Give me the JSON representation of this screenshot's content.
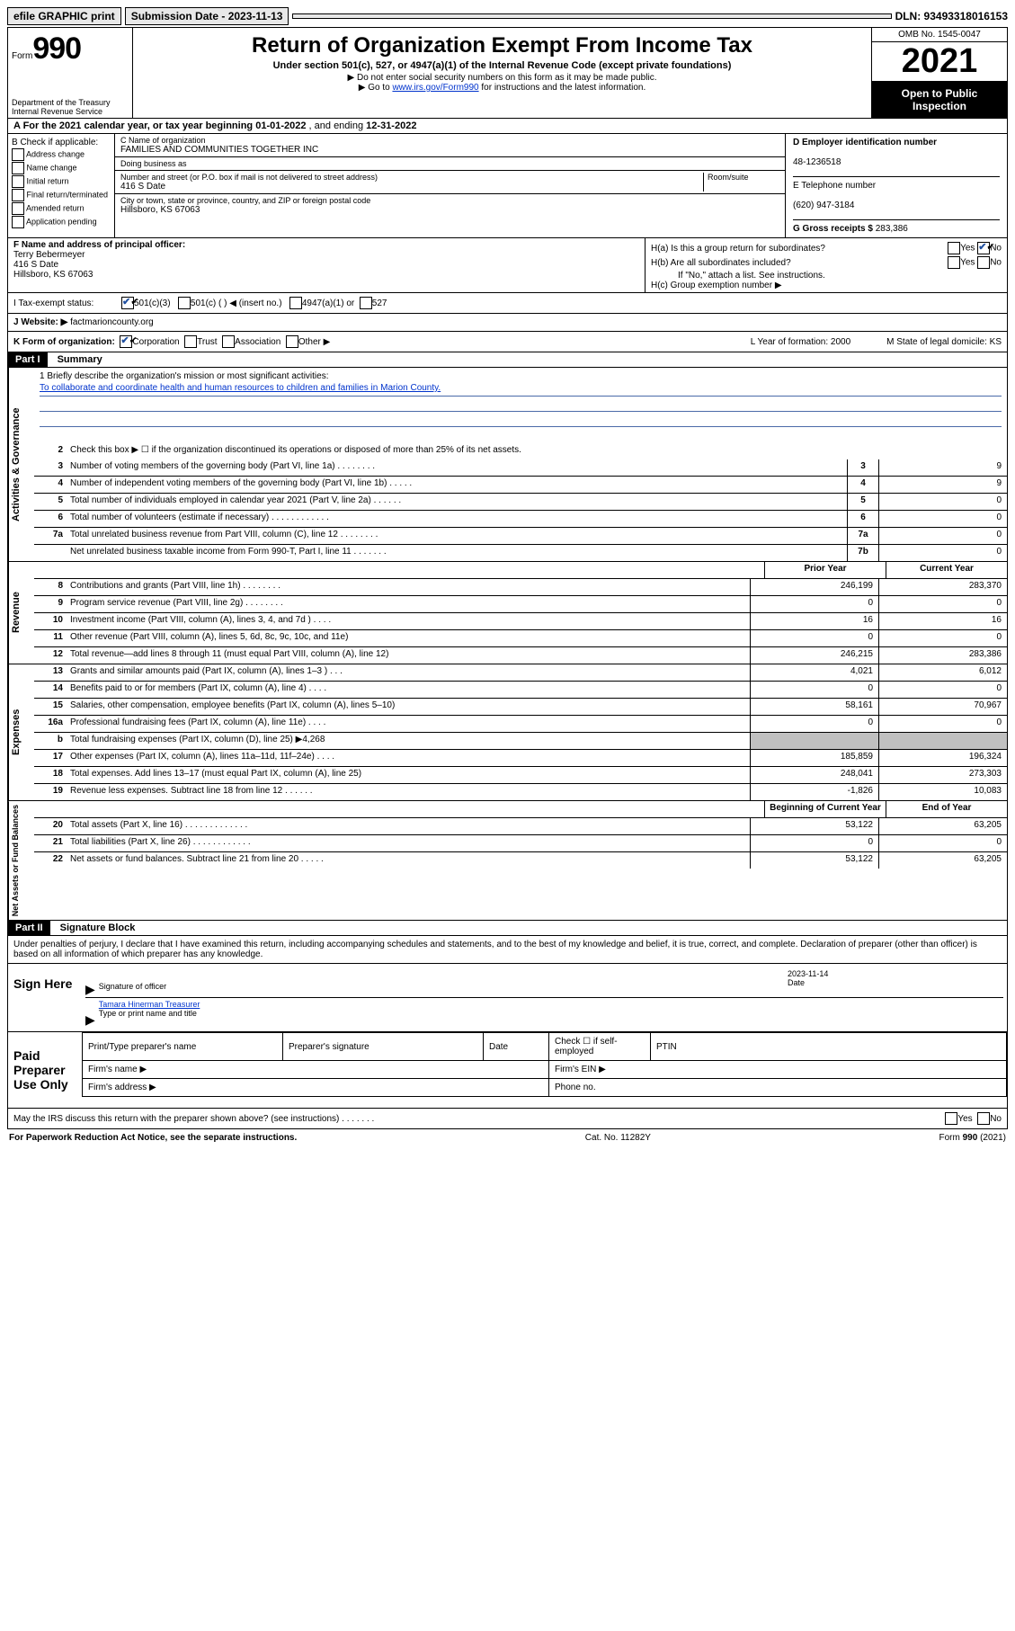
{
  "topbar": {
    "efile": "efile GRAPHIC print",
    "submission": "Submission Date - 2023-11-13",
    "dln": "DLN: 93493318016153"
  },
  "header": {
    "form_label": "Form",
    "form_number": "990",
    "title": "Return of Organization Exempt From Income Tax",
    "subtitle": "Under section 501(c), 527, or 4947(a)(1) of the Internal Revenue Code (except private foundations)",
    "note1": "▶ Do not enter social security numbers on this form as it may be made public.",
    "note2_pre": "▶ Go to ",
    "note2_link": "www.irs.gov/Form990",
    "note2_post": " for instructions and the latest information.",
    "dept": "Department of the Treasury\nInternal Revenue Service",
    "omb": "OMB No. 1545-0047",
    "year": "2021",
    "inspection": "Open to Public Inspection"
  },
  "lineA": {
    "text": "A For the 2021 calendar year, or tax year beginning ",
    "begin": "01-01-2022",
    "mid": " , and ending ",
    "end": "12-31-2022"
  },
  "sectionB": {
    "label": "B Check if applicable:",
    "opts": [
      "Address change",
      "Name change",
      "Initial return",
      "Final return/terminated",
      "Amended return",
      "Application pending"
    ]
  },
  "sectionC": {
    "name_label": "C Name of organization",
    "name": "FAMILIES AND COMMUNITIES TOGETHER INC",
    "dba_label": "Doing business as",
    "dba": "",
    "street_label": "Number and street (or P.O. box if mail is not delivered to street address)",
    "room_label": "Room/suite",
    "street": "416 S Date",
    "city_label": "City or town, state or province, country, and ZIP or foreign postal code",
    "city": "Hillsboro, KS  67063"
  },
  "sectionD": {
    "ein_label": "D Employer identification number",
    "ein": "48-1236518",
    "phone_label": "E Telephone number",
    "phone": "(620) 947-3184",
    "gross_label": "G Gross receipts $",
    "gross": "283,386"
  },
  "sectionF": {
    "label": "F Name and address of principal officer:",
    "name": "Terry Bebermeyer",
    "street": "416 S Date",
    "city": "Hillsboro, KS  67063"
  },
  "sectionH": {
    "ha": "H(a)  Is this a group return for subordinates?",
    "hb": "H(b)  Are all subordinates included?",
    "hb_note": "If \"No,\" attach a list. See instructions.",
    "hc": "H(c)  Group exemption number ▶",
    "yes": "Yes",
    "no": "No"
  },
  "sectionI": {
    "label": "I    Tax-exempt status:",
    "o1": "501(c)(3)",
    "o2": "501(c) (   ) ◀ (insert no.)",
    "o3": "4947(a)(1) or",
    "o4": "527"
  },
  "sectionJ": {
    "label": "J    Website: ▶",
    "value": "factmarioncounty.org"
  },
  "sectionK": {
    "label": "K Form of organization:",
    "o1": "Corporation",
    "o2": "Trust",
    "o3": "Association",
    "o4": "Other ▶",
    "L": "L Year of formation: 2000",
    "M": "M State of legal domicile: KS"
  },
  "partI": {
    "header": "Part I",
    "title": "Summary",
    "mission_label": "1   Briefly describe the organization's mission or most significant activities:",
    "mission": "To collaborate and coordinate health and human resources to children and families in Marion County.",
    "tabs": {
      "gov": "Activities & Governance",
      "rev": "Revenue",
      "exp": "Expenses",
      "net": "Net Assets or Fund Balances"
    },
    "line2": "Check this box ▶ ☐  if the organization discontinued its operations or disposed of more than 25% of its net assets.",
    "col_prior": "Prior Year",
    "col_current": "Current Year",
    "col_begin": "Beginning of Current Year",
    "col_end": "End of Year",
    "lines_gov": [
      {
        "n": "3",
        "d": "Number of voting members of the governing body (Part VI, line 1a)   .    .    .    .    .    .    .    .",
        "b": "3",
        "v": "9"
      },
      {
        "n": "4",
        "d": "Number of independent voting members of the governing body (Part VI, line 1b)   .    .    .    .    .",
        "b": "4",
        "v": "9"
      },
      {
        "n": "5",
        "d": "Total number of individuals employed in calendar year 2021 (Part V, line 2a)   .    .    .    .    .    .",
        "b": "5",
        "v": "0"
      },
      {
        "n": "6",
        "d": "Total number of volunteers (estimate if necessary)   .    .    .    .    .    .    .    .    .    .    .    .",
        "b": "6",
        "v": "0"
      },
      {
        "n": "7a",
        "d": "Total unrelated business revenue from Part VIII, column (C), line 12   .    .    .    .    .    .    .    .",
        "b": "7a",
        "v": "0"
      },
      {
        "n": " ",
        "d": "Net unrelated business taxable income from Form 990-T, Part I, line 11   .    .    .    .    .    .    .",
        "b": "7b",
        "v": "0"
      }
    ],
    "lines_rev": [
      {
        "n": "8",
        "d": "Contributions and grants (Part VIII, line 1h)   .    .    .    .    .    .    .    .",
        "p": "246,199",
        "c": "283,370"
      },
      {
        "n": "9",
        "d": "Program service revenue (Part VIII, line 2g)   .    .    .    .    .    .    .    .",
        "p": "0",
        "c": "0"
      },
      {
        "n": "10",
        "d": "Investment income (Part VIII, column (A), lines 3, 4, and 7d )   .    .    .    .",
        "p": "16",
        "c": "16"
      },
      {
        "n": "11",
        "d": "Other revenue (Part VIII, column (A), lines 5, 6d, 8c, 9c, 10c, and 11e)",
        "p": "0",
        "c": "0"
      },
      {
        "n": "12",
        "d": "Total revenue—add lines 8 through 11 (must equal Part VIII, column (A), line 12)",
        "p": "246,215",
        "c": "283,386"
      }
    ],
    "lines_exp": [
      {
        "n": "13",
        "d": "Grants and similar amounts paid (Part IX, column (A), lines 1–3 )   .    .    .",
        "p": "4,021",
        "c": "6,012"
      },
      {
        "n": "14",
        "d": "Benefits paid to or for members (Part IX, column (A), line 4)   .    .    .    .",
        "p": "0",
        "c": "0"
      },
      {
        "n": "15",
        "d": "Salaries, other compensation, employee benefits (Part IX, column (A), lines 5–10)",
        "p": "58,161",
        "c": "70,967"
      },
      {
        "n": "16a",
        "d": "Professional fundraising fees (Part IX, column (A), line 11e)   .    .    .    .",
        "p": "0",
        "c": "0"
      },
      {
        "n": "b",
        "d": "Total fundraising expenses (Part IX, column (D), line 25) ▶4,268",
        "p": "",
        "c": "",
        "shaded": true
      },
      {
        "n": "17",
        "d": "Other expenses (Part IX, column (A), lines 11a–11d, 11f–24e)   .    .    .    .",
        "p": "185,859",
        "c": "196,324"
      },
      {
        "n": "18",
        "d": "Total expenses. Add lines 13–17 (must equal Part IX, column (A), line 25)",
        "p": "248,041",
        "c": "273,303"
      },
      {
        "n": "19",
        "d": "Revenue less expenses. Subtract line 18 from line 12   .    .    .    .    .    .",
        "p": "-1,826",
        "c": "10,083"
      }
    ],
    "lines_net": [
      {
        "n": "20",
        "d": "Total assets (Part X, line 16)   .    .    .    .    .    .    .    .    .    .    .    .    .",
        "p": "53,122",
        "c": "63,205"
      },
      {
        "n": "21",
        "d": "Total liabilities (Part X, line 26)   .    .    .    .    .    .    .    .    .    .    .    .",
        "p": "0",
        "c": "0"
      },
      {
        "n": "22",
        "d": "Net assets or fund balances. Subtract line 21 from line 20   .    .    .    .    .",
        "p": "53,122",
        "c": "63,205"
      }
    ]
  },
  "partII": {
    "header": "Part II",
    "title": "Signature Block",
    "declaration": "Under penalties of perjury, I declare that I have examined this return, including accompanying schedules and statements, and to the best of my knowledge and belief, it is true, correct, and complete. Declaration of preparer (other than officer) is based on all information of which preparer has any knowledge.",
    "sign_here": "Sign Here",
    "sig_officer": "Signature of officer",
    "date_label": "Date",
    "date": "2023-11-14",
    "officer_name": "Tamara Hinerman  Treasurer",
    "type_name": "Type or print name and title",
    "paid": "Paid Preparer Use Only",
    "prep_name": "Print/Type preparer's name",
    "prep_sig": "Preparer's signature",
    "prep_date": "Date",
    "prep_check": "Check ☐ if self-employed",
    "ptin": "PTIN",
    "firm_name": "Firm's name    ▶",
    "firm_ein": "Firm's EIN ▶",
    "firm_addr": "Firm's address ▶",
    "phone": "Phone no.",
    "discuss": "May the IRS discuss this return with the preparer shown above? (see instructions)   .    .    .    .    .    .    ."
  },
  "footer": {
    "left": "For Paperwork Reduction Act Notice, see the separate instructions.",
    "mid": "Cat. No. 11282Y",
    "right": "Form 990 (2021)"
  }
}
